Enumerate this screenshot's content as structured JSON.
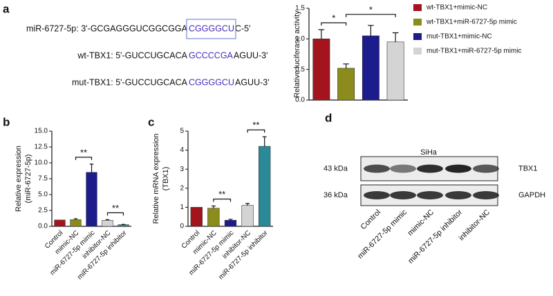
{
  "panel_labels": [
    "a",
    "b",
    "c",
    "d"
  ],
  "sequences": [
    {
      "prefix": "miR-6727-5p: 3'-GCGAGGGUCGGCGGA",
      "site": "CGGGGCU",
      "suffix": "C-5'"
    },
    {
      "prefix": "wt-TBX1: 5'-GUCCUGCACA",
      "site": "GCCCCGA",
      "suffix": "AGUU-3'"
    },
    {
      "prefix": "mut-TBX1: 5'-GUCCUGCACA",
      "site": "CGGGGCU",
      "suffix": "AGUU-3'"
    }
  ],
  "chart_data": [
    {
      "type": "bar",
      "y_label": [
        "Relative luciferase activity"
      ],
      "ylim": [
        0,
        1.5
      ],
      "yticks": [
        {
          "value": 0,
          "label": "0.0"
        },
        0.5,
        {
          "value": 1,
          "label": "1.0"
        },
        1.5
      ],
      "legend": "right",
      "series": [
        {
          "name": "wt-TBX1+mimic-NC",
          "color": "#a3141c",
          "values": [
            1.0
          ],
          "errors": [
            0.15
          ]
        },
        {
          "name": "wt-TBX1+miR-6727-5p mimic",
          "color": "#8c8c1c",
          "values": [
            0.52
          ],
          "errors": [
            0.07
          ]
        },
        {
          "name": "mut-TBX1+mimic-NC",
          "color": "#1c1c8c",
          "values": [
            1.05
          ],
          "errors": [
            0.17
          ]
        },
        {
          "name": "mut-TBX1+miR-6727-5p mimic",
          "color": "#d4d4d4",
          "values": [
            0.95
          ],
          "errors": [
            0.15
          ]
        }
      ],
      "significance": [
        {
          "label": "*",
          "between": [
            0,
            1
          ]
        },
        {
          "label": "*",
          "between": [
            1,
            3
          ]
        }
      ]
    },
    {
      "type": "bar",
      "y_label": [
        "Relative expression",
        "(miR-6727-5p)"
      ],
      "ylim": [
        0,
        15
      ],
      "yticks": [
        {
          "value": 0,
          "label": "0.0"
        },
        2.5,
        {
          "value": 5,
          "label": "5.0"
        },
        7.5,
        {
          "value": 10,
          "label": "10.0"
        },
        12.5,
        {
          "value": 15,
          "label": "15.0"
        }
      ],
      "categories": [
        "Control",
        "mimic-NC",
        "miR-6727-5p mimic",
        "inhibitor-NC",
        "miR-6727-5p inhibitor"
      ],
      "values": [
        1.0,
        1.05,
        8.5,
        0.95,
        0.25
      ],
      "errors": [
        null,
        0.15,
        1.3,
        0.1,
        0.05
      ],
      "colors": [
        "#a3141c",
        "#8c8c1c",
        "#1c1c8c",
        "#d4d4d4",
        "#2a8a9a"
      ],
      "significance": [
        {
          "label": "**",
          "between": [
            1,
            2
          ]
        },
        {
          "label": "**",
          "between": [
            3,
            4
          ]
        }
      ]
    },
    {
      "type": "bar",
      "y_label": [
        "Relative mRNA expression",
        "(TBX1)"
      ],
      "ylim": [
        0,
        5
      ],
      "yticks": [
        0,
        1,
        2,
        3,
        4,
        5
      ],
      "categories": [
        "Control",
        "mimic-NC",
        "miR-6727-5p mimic",
        "inhibitor-NC",
        "miR-6727-5p inhibitor"
      ],
      "values": [
        1.0,
        0.95,
        0.32,
        1.1,
        4.2
      ],
      "errors": [
        null,
        0.12,
        0.05,
        0.1,
        0.5
      ],
      "colors": [
        "#a3141c",
        "#8c8c1c",
        "#1c1c8c",
        "#d4d4d4",
        "#2a8a9a"
      ],
      "significance": [
        {
          "label": "**",
          "between": [
            1,
            2
          ]
        },
        {
          "label": "**",
          "between": [
            3,
            4
          ]
        }
      ]
    }
  ],
  "blot": {
    "cell_line": "SiHa",
    "bands": [
      {
        "size": "43 kDa",
        "protein": "TBX1"
      },
      {
        "size": "36 kDa",
        "protein": "GAPDH"
      }
    ],
    "lanes": [
      "Control",
      "miR-6727-5p mimic",
      "mimic-NC",
      "miR-6727-5p inhibitor",
      "inhibitor-NC"
    ]
  }
}
